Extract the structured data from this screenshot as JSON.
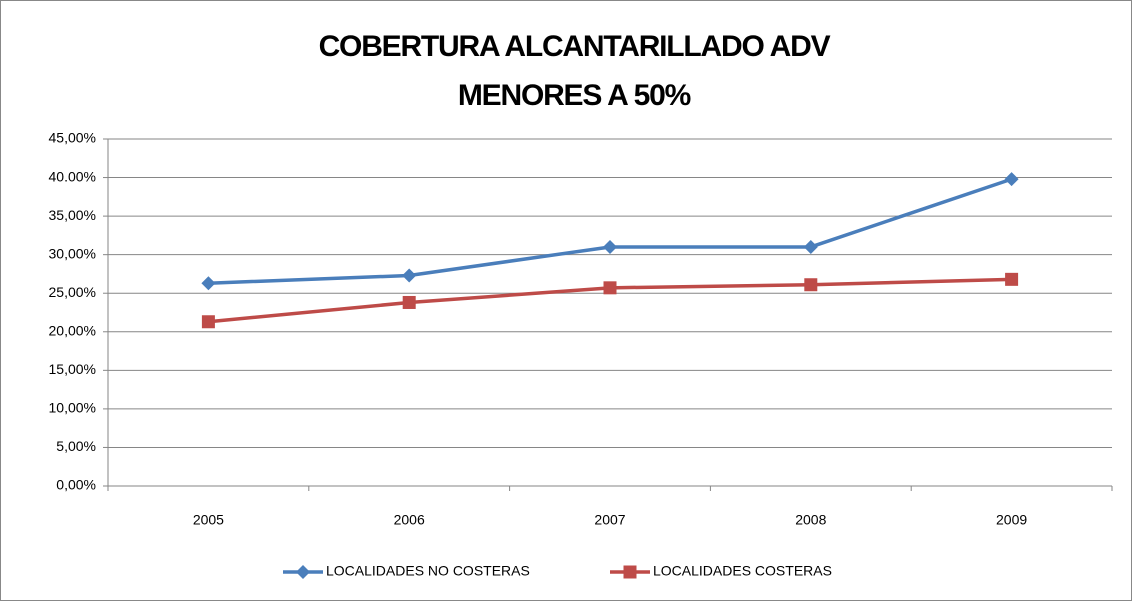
{
  "chart_data": {
    "type": "line",
    "title": [
      "COBERTURA ALCANTARILLADO ADV",
      "MENORES A 50%"
    ],
    "categories": [
      "2005",
      "2006",
      "2007",
      "2008",
      "2009"
    ],
    "series": [
      {
        "name": "LOCALIDADES NO COSTERAS",
        "color": "#4a7ebb",
        "marker": "diamond",
        "values": [
          26.3,
          27.3,
          31.0,
          31.0,
          39.8
        ]
      },
      {
        "name": "LOCALIDADES COSTERAS",
        "color": "#be4b48",
        "marker": "square",
        "values": [
          21.3,
          23.8,
          25.7,
          26.1,
          26.8
        ]
      }
    ],
    "ylim": [
      0,
      45
    ],
    "yticks": [
      {
        "value": 0,
        "label": "0,00%"
      },
      {
        "value": 5,
        "label": "5,00%"
      },
      {
        "value": 10,
        "label": "10,00%"
      },
      {
        "value": 15,
        "label": "15,00%"
      },
      {
        "value": 20,
        "label": "20,00%"
      },
      {
        "value": 25,
        "label": "25,00%"
      },
      {
        "value": 30,
        "label": "30,00%"
      },
      {
        "value": 35,
        "label": "35,00%"
      },
      {
        "value": 40,
        "label": "40.00%"
      },
      {
        "value": 45,
        "label": "45,00%"
      }
    ],
    "grid": true,
    "legend": "bottom"
  }
}
